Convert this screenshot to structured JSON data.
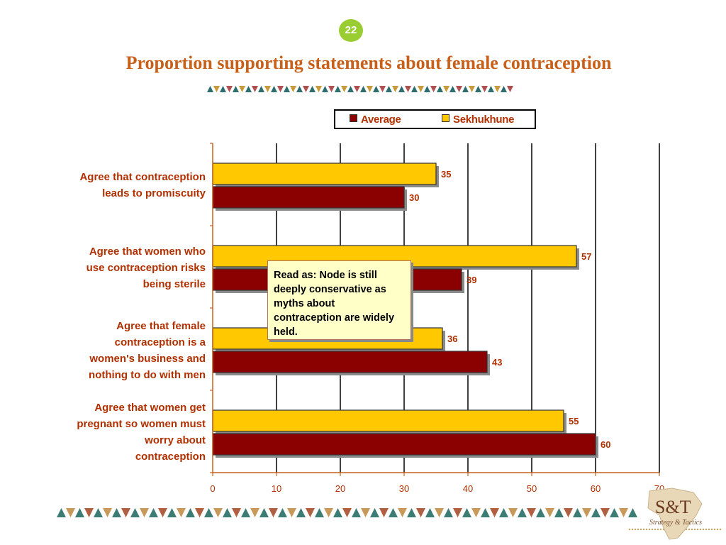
{
  "slide_number": "22",
  "title": "Proportion supporting statements about female contraception",
  "legend": {
    "average": "Average",
    "sekhukhune": "Sekhukhune"
  },
  "callout": "Read as: Node is still deeply conservative as myths about contraception are widely held.",
  "logo": {
    "mark": "S&T",
    "tagline": "Strategy & Tactics"
  },
  "colors": {
    "average": "#8B0000",
    "sekhukhune": "#FFC800",
    "accent_text": "#B03000",
    "title": "#C8601A"
  },
  "chart_data": {
    "type": "bar",
    "orientation": "horizontal",
    "categories": [
      "Agree that contraception\nleads to promiscuity",
      "Agree that women who\nuse contraception risks\nbeing sterile",
      "Agree that female\ncontraception is a\nwomen's business and\nnothing to do with men",
      "Agree that women get\npregnant so women must\nworry about\ncontraception"
    ],
    "series": [
      {
        "name": "Sekhukhune",
        "values": [
          35,
          57,
          36,
          55
        ]
      },
      {
        "name": "Average",
        "values": [
          30,
          39,
          43,
          60
        ]
      }
    ],
    "xlim": [
      0,
      70
    ],
    "xticks": [
      0,
      10,
      20,
      30,
      40,
      50,
      60,
      70
    ],
    "grid": true,
    "legend_position": "top"
  }
}
